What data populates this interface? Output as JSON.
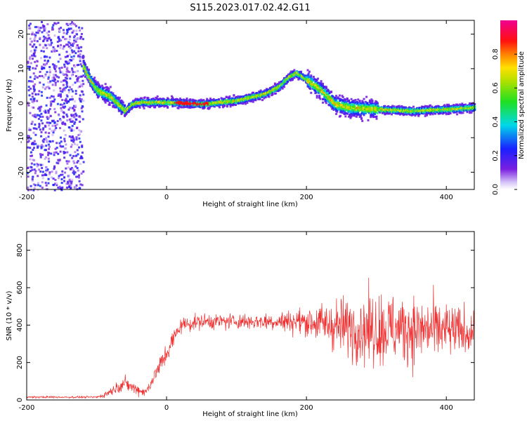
{
  "title": "S115.2023.017.02.42.G11",
  "chart_data": [
    {
      "type": "heatmap",
      "xlabel": "Height of straight line (km)",
      "ylabel": "Frequency (Hz)",
      "xlim": [
        -200,
        440
      ],
      "ylim": [
        -25,
        24
      ],
      "xticks": [
        -200,
        0,
        200,
        400
      ],
      "yticks": [
        -20,
        -10,
        0,
        10,
        20
      ],
      "colorbar": {
        "label": "Normalized spectral amplitude",
        "range": [
          0,
          1
        ],
        "ticks": [
          "0.0",
          "0.2",
          "0.4",
          "0.6",
          "0.8"
        ],
        "colormap": "rainbow (purple → blue → cyan → green → yellow → red → magenta)"
      },
      "ridge_trace": {
        "description": "approximate frequency of dominant spectral ridge vs height",
        "x": [
          -120,
          -110,
          -100,
          -90,
          -80,
          -70,
          -60,
          -50,
          -40,
          -20,
          0,
          50,
          100,
          140,
          160,
          175,
          185,
          200,
          220,
          240,
          260,
          300,
          350,
          400,
          440
        ],
        "y": [
          11,
          7,
          4,
          3,
          2,
          0,
          -2,
          0,
          0.5,
          0.5,
          0.5,
          0,
          1,
          3,
          5,
          8,
          9,
          7,
          4,
          0,
          -1,
          -1.5,
          -2,
          -1.5,
          -1
        ]
      }
    },
    {
      "type": "line",
      "xlabel": "Height of straight line (km)",
      "ylabel": "SNR (10 * v/v)",
      "xlim": [
        -200,
        440
      ],
      "ylim": [
        0,
        900
      ],
      "xticks": [
        -200,
        0,
        200,
        400
      ],
      "yticks": [
        0,
        200,
        400,
        600,
        800
      ],
      "color": "#f03030",
      "envelope": {
        "description": "approximate mean and spread of SNR vs height",
        "x": [
          -200,
          -100,
          -90,
          -60,
          -45,
          -30,
          0,
          20,
          50,
          100,
          150,
          200,
          240,
          280,
          310,
          350,
          400,
          440
        ],
        "mean": [
          15,
          15,
          25,
          90,
          60,
          40,
          250,
          400,
          420,
          420,
          420,
          420,
          400,
          380,
          380,
          380,
          370,
          360
        ],
        "spread": [
          6,
          6,
          15,
          40,
          35,
          25,
          70,
          45,
          45,
          45,
          50,
          80,
          150,
          200,
          220,
          200,
          160,
          120
        ]
      }
    }
  ]
}
